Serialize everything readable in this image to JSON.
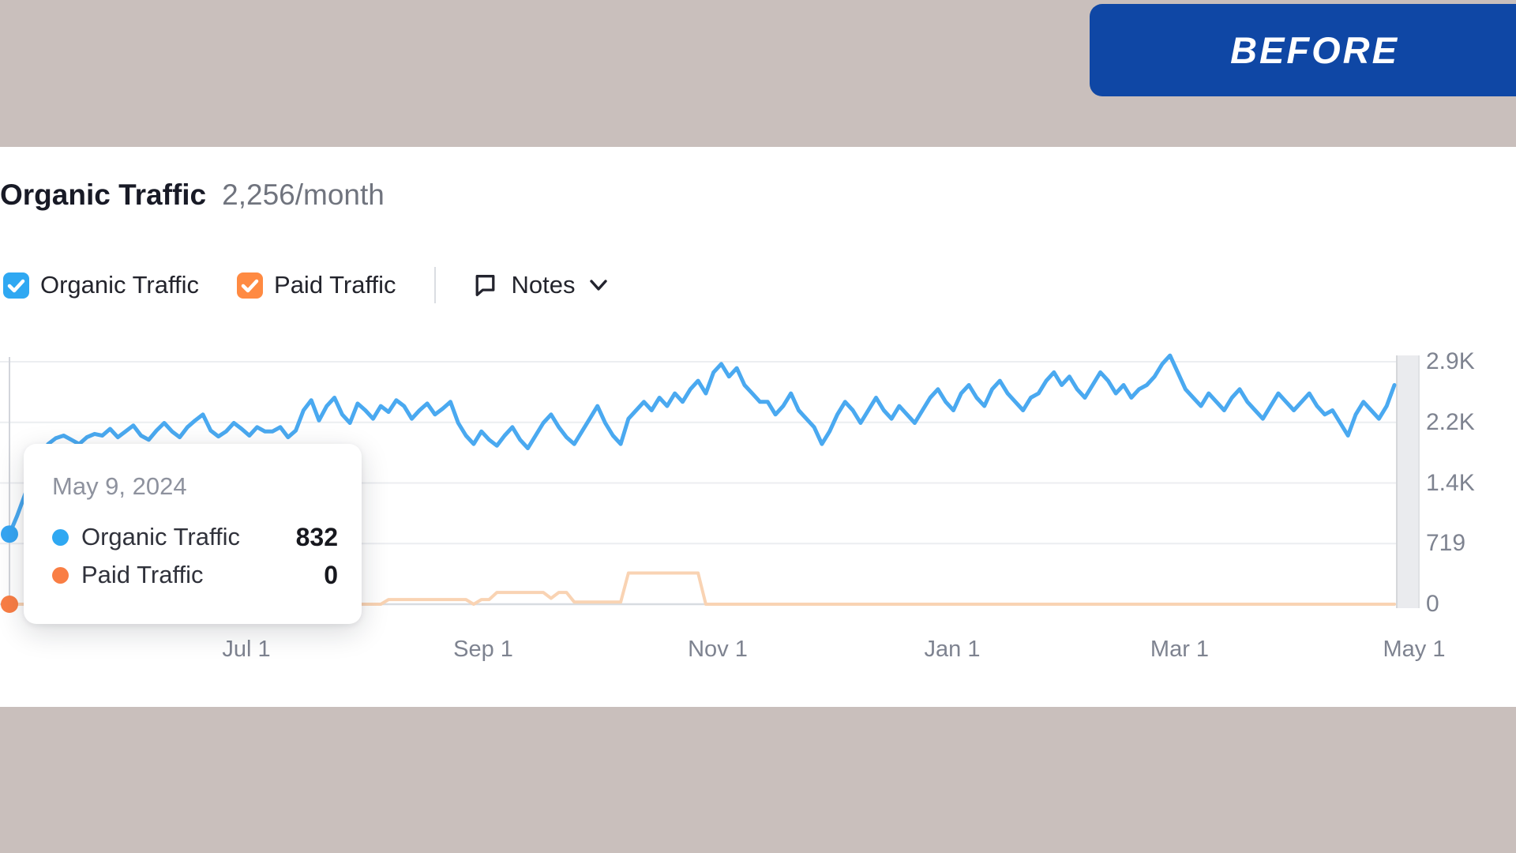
{
  "badge": {
    "label": "BEFORE",
    "color": "#0F47A5"
  },
  "header": {
    "title": "Organic Traffic",
    "value": "2,256/month"
  },
  "legend": {
    "organic": {
      "label": "Organic Traffic",
      "checked": true,
      "color": "#2FA8F2"
    },
    "paid": {
      "label": "Paid Traffic",
      "checked": true,
      "color": "#FF8A42"
    },
    "notes_label": "Notes"
  },
  "tooltip": {
    "date": "May 9, 2024",
    "rows": [
      {
        "label": "Organic Traffic",
        "value": "832",
        "color": "#2FA8F2"
      },
      {
        "label": "Paid Traffic",
        "value": "0",
        "color": "#F97E44"
      }
    ]
  },
  "chart_data": {
    "type": "line",
    "title": "Organic Traffic",
    "x_range": [
      "May 9, 2024",
      "May 1, 2025"
    ],
    "x_tick_labels": [
      "Jul 1",
      "Sep 1",
      "Nov 1",
      "Jan 1",
      "Mar 1",
      "May 1"
    ],
    "y_tick_labels": [
      "0",
      "719",
      "1.4K",
      "2.2K",
      "2.9K"
    ],
    "y_tick_values": [
      0,
      719,
      1438,
      2157,
      2876
    ],
    "ylim": [
      0,
      2950
    ],
    "grid": true,
    "legend_position": "top-left",
    "hovered_point": {
      "date": "May 9, 2024",
      "organic": 832,
      "paid": 0
    },
    "series": [
      {
        "name": "Organic Traffic",
        "color": "#4AA9F0",
        "values": [
          832,
          1050,
          1300,
          1550,
          1750,
          1900,
          1970,
          2000,
          1950,
          1900,
          1980,
          2020,
          2000,
          2080,
          1980,
          2050,
          2120,
          2000,
          1950,
          2060,
          2150,
          2050,
          1980,
          2100,
          2180,
          2250,
          2060,
          1990,
          2050,
          2150,
          2080,
          2000,
          2100,
          2050,
          2050,
          2100,
          1980,
          2060,
          2300,
          2420,
          2180,
          2350,
          2450,
          2250,
          2150,
          2380,
          2300,
          2200,
          2350,
          2280,
          2420,
          2350,
          2200,
          2300,
          2380,
          2250,
          2320,
          2400,
          2150,
          2000,
          1900,
          2050,
          1950,
          1880,
          2000,
          2100,
          1950,
          1850,
          2000,
          2150,
          2250,
          2100,
          1980,
          1900,
          2050,
          2200,
          2350,
          2150,
          2000,
          1900,
          2200,
          2300,
          2400,
          2300,
          2450,
          2350,
          2500,
          2400,
          2550,
          2650,
          2500,
          2750,
          2850,
          2700,
          2800,
          2600,
          2500,
          2400,
          2400,
          2250,
          2350,
          2500,
          2300,
          2200,
          2100,
          1900,
          2050,
          2250,
          2400,
          2300,
          2150,
          2300,
          2450,
          2300,
          2200,
          2350,
          2250,
          2150,
          2300,
          2450,
          2550,
          2400,
          2300,
          2500,
          2600,
          2450,
          2350,
          2550,
          2650,
          2500,
          2400,
          2300,
          2450,
          2500,
          2650,
          2750,
          2600,
          2700,
          2550,
          2450,
          2600,
          2750,
          2650,
          2500,
          2600,
          2450,
          2550,
          2600,
          2700,
          2850,
          2950,
          2750,
          2550,
          2450,
          2350,
          2500,
          2400,
          2300,
          2450,
          2550,
          2400,
          2300,
          2200,
          2350,
          2500,
          2400,
          2300,
          2400,
          2500,
          2350,
          2250,
          2300,
          2150,
          2000,
          2250,
          2400,
          2300,
          2200,
          2350,
          2600
        ]
      },
      {
        "name": "Paid Traffic",
        "color": "#F9D3B3",
        "values": [
          0,
          0,
          0,
          0,
          0,
          0,
          0,
          0,
          0,
          0,
          0,
          0,
          0,
          0,
          0,
          0,
          0,
          0,
          0,
          0,
          0,
          0,
          0,
          0,
          0,
          0,
          0,
          0,
          0,
          0,
          0,
          0,
          0,
          0,
          0,
          0,
          60,
          60,
          60,
          60,
          60,
          60,
          60,
          60,
          60,
          0,
          0,
          0,
          0,
          55,
          55,
          55,
          55,
          55,
          55,
          55,
          55,
          55,
          55,
          55,
          0,
          55,
          55,
          140,
          140,
          140,
          140,
          140,
          140,
          140,
          70,
          140,
          140,
          25,
          25,
          25,
          25,
          25,
          25,
          25,
          370,
          370,
          370,
          370,
          370,
          370,
          370,
          370,
          370,
          370,
          0,
          0,
          0,
          0,
          0,
          0,
          0,
          0,
          0,
          0,
          0,
          0,
          0,
          0,
          0,
          0,
          0,
          0,
          0,
          0,
          0,
          0,
          0,
          0,
          0,
          0,
          0,
          0,
          0,
          0,
          0,
          0,
          0,
          0,
          0,
          0,
          0,
          0,
          0,
          0,
          0,
          0,
          0,
          0,
          0,
          0,
          0,
          0,
          0,
          0,
          0,
          0,
          0,
          0,
          0,
          0,
          0,
          0,
          0,
          0,
          0,
          0,
          0,
          0,
          0,
          0,
          0,
          0,
          0,
          0,
          0,
          0,
          0,
          0,
          0,
          0,
          0,
          0,
          0,
          0,
          0,
          0,
          0,
          0,
          0,
          0,
          0,
          0,
          0,
          0
        ]
      }
    ]
  }
}
